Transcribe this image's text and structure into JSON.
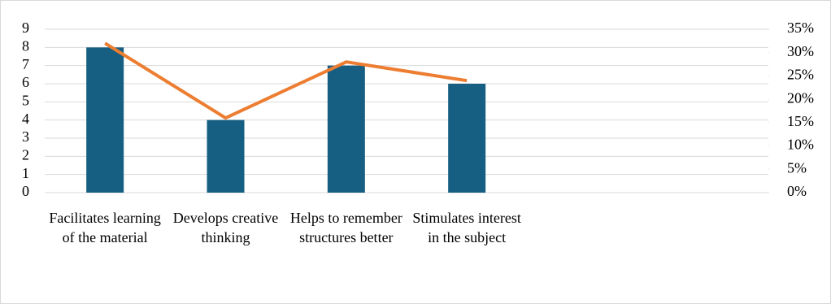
{
  "chart_data": {
    "type": "bar",
    "categories": [
      "Facilitates learning of the material",
      "Develops creative thinking",
      "Helps to remember structures better",
      "Stimulates interest in the subject",
      null,
      null
    ],
    "series": [
      {
        "type": "bar",
        "color": "#175f82",
        "values": [
          8,
          4,
          7,
          6,
          null,
          null
        ]
      },
      {
        "type": "line",
        "axis": "y2",
        "color": "#ed7d31",
        "values": [
          32,
          16,
          28,
          24,
          null,
          null
        ]
      }
    ],
    "ylim": [
      0,
      9
    ],
    "yticks": [
      0,
      1,
      2,
      3,
      4,
      5,
      6,
      7,
      8,
      9
    ],
    "y2lim": [
      0,
      35
    ],
    "y2ticks": [
      {
        "value": 0,
        "label": "0%"
      },
      {
        "value": 5,
        "label": "5%"
      },
      {
        "value": 10,
        "label": "10%"
      },
      {
        "value": 15,
        "label": "15%"
      },
      {
        "value": 20,
        "label": "20%"
      },
      {
        "value": 25,
        "label": "25%"
      },
      {
        "value": 30,
        "label": "30%"
      },
      {
        "value": 35,
        "label": "35%"
      }
    ],
    "grid": true
  }
}
